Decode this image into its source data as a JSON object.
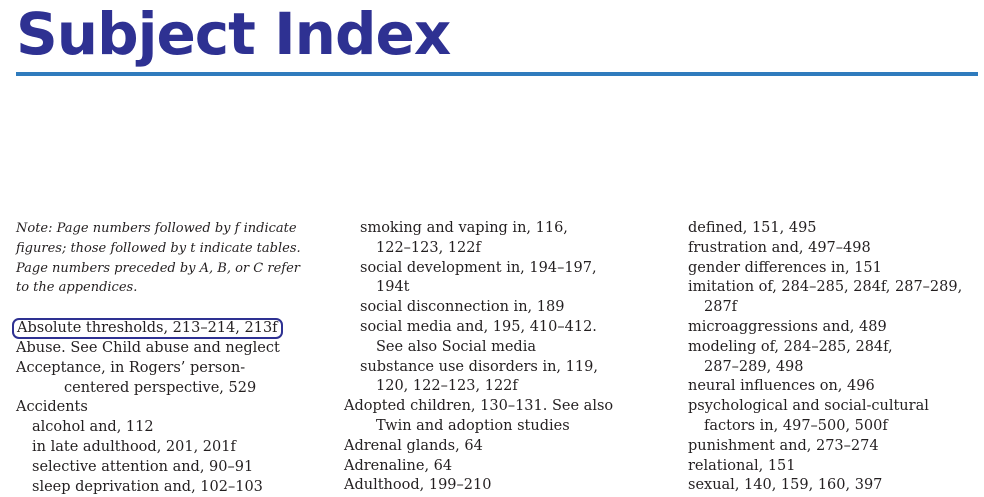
{
  "title": "Subject Index",
  "note": [
    "Note: Page numbers followed by f indicate",
    "figures; those followed by t indicate tables.",
    "Page numbers preceded by A, B, or C refer",
    "to the appendices."
  ],
  "col1": [
    "Absolute thresholds, 213–214, 213f",
    "Abuse. See Child abuse and neglect",
    "Acceptance, in Rogers’ person-",
    "centered perspective, 529",
    "Accidents",
    "alcohol and, 112",
    "in late adulthood, 201, 201f",
    "selective attention and, 90–91",
    "sleep deprivation and, 102–103"
  ],
  "col2": [
    "smoking and vaping in, 116,",
    "122–123, 122f",
    "social development in, 194–197,",
    "194t",
    "social disconnection in, 189",
    "social media and, 195, 410–412.",
    "See also Social media",
    "substance use disorders in, 119,",
    "120, 122–123, 122f",
    "Adopted children, 130–131. See also",
    "Twin and adoption studies",
    "Adrenal glands, 64",
    "Adrenaline, 64",
    "Adulthood, 199–210"
  ],
  "col3": [
    "defined, 151, 495",
    "frustration and, 497–498",
    "gender differences in, 151",
    "imitation of, 284–285, 284f, 287–289,",
    "287f",
    "microaggressions and, 489",
    "modeling of, 284–285, 284f,",
    "287–289, 498",
    "neural influences on, 496",
    "psychological and social-cultural",
    "factors in, 497–500, 500f",
    "punishment and, 273–274",
    "relational, 151",
    "sexual, 140, 159, 160, 397"
  ]
}
